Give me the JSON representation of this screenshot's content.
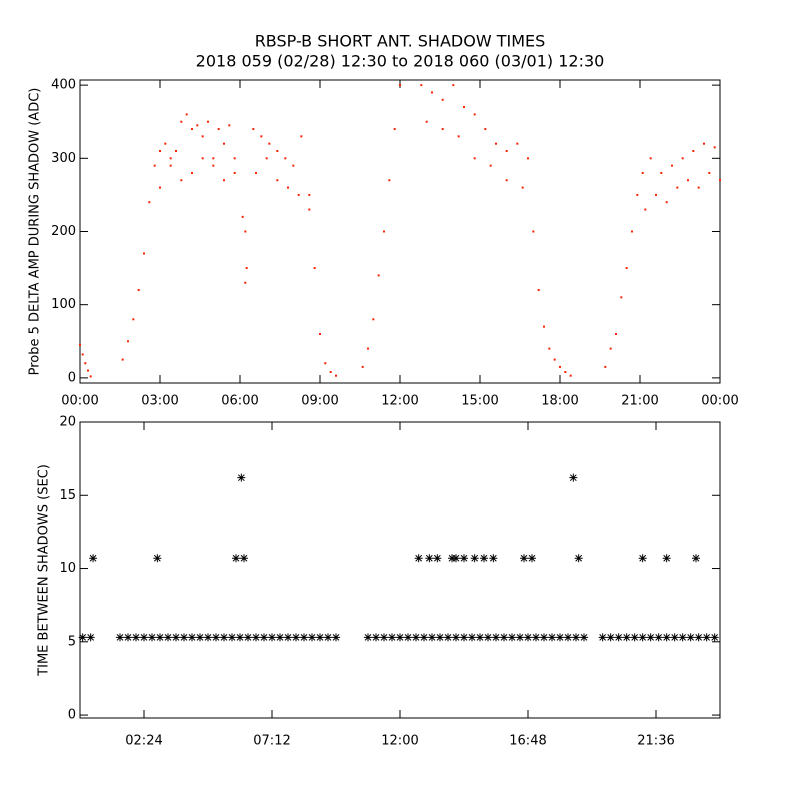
{
  "chart_data": [
    {
      "type": "scatter",
      "title": "RBSP-B SHORT ANT. SHADOW TIMES",
      "subtitle": "2018 059 (02/28) 12:30 to 2018 060 (03/01) 12:30",
      "ylabel": "Probe 5 DELTA AMP DURING SHADOW (ADC)",
      "xlim": [
        0,
        24
      ],
      "ylim": [
        -7,
        407
      ],
      "xticks": [
        {
          "value": 0,
          "label": "00:00"
        },
        {
          "value": 3,
          "label": "03:00"
        },
        {
          "value": 6,
          "label": "06:00"
        },
        {
          "value": 9,
          "label": "09:00"
        },
        {
          "value": 12,
          "label": "12:00"
        },
        {
          "value": 15,
          "label": "15:00"
        },
        {
          "value": 18,
          "label": "18:00"
        },
        {
          "value": 21,
          "label": "21:00"
        },
        {
          "value": 24,
          "label": "00:00"
        }
      ],
      "yticks": [
        0,
        100,
        200,
        300,
        400
      ],
      "series": [
        {
          "color": "#ff2000",
          "x": [
            0.0,
            0.1,
            0.2,
            0.3,
            0.4,
            1.6,
            1.8,
            2.0,
            2.2,
            2.4,
            2.6,
            2.8,
            3.0,
            3.2,
            3.4,
            3.6,
            3.8,
            4.0,
            4.2,
            4.4,
            4.6,
            4.8,
            5.0,
            5.2,
            5.4,
            5.6,
            5.8,
            3.0,
            3.4,
            3.8,
            4.2,
            4.6,
            5.0,
            5.4,
            5.8,
            6.1,
            6.2,
            6.25,
            6.2,
            6.5,
            6.8,
            7.1,
            7.4,
            7.7,
            8.0,
            8.3,
            8.6,
            8.8,
            9.0,
            9.2,
            9.4,
            9.6,
            6.6,
            7.0,
            7.4,
            7.8,
            8.2,
            8.6,
            10.6,
            10.8,
            11.0,
            11.2,
            11.4,
            11.6,
            11.8,
            12.0,
            12.8,
            13.2,
            13.6,
            14.0,
            14.4,
            14.8,
            15.2,
            15.6,
            16.0,
            16.4,
            16.8,
            17.0,
            17.2,
            17.4,
            17.6,
            17.8,
            18.0,
            18.2,
            18.4,
            13.0,
            13.6,
            14.2,
            14.8,
            15.4,
            16.0,
            16.6,
            19.7,
            19.9,
            20.1,
            20.3,
            20.5,
            20.7,
            20.9,
            21.1,
            21.4,
            21.8,
            22.2,
            22.6,
            23.0,
            23.4,
            23.8,
            21.2,
            21.6,
            22.0,
            22.4,
            22.8,
            23.2,
            23.6,
            24.0
          ],
          "values": [
            45,
            32,
            20,
            10,
            2,
            25,
            50,
            80,
            120,
            170,
            240,
            290,
            310,
            320,
            300,
            310,
            350,
            360,
            340,
            345,
            330,
            350,
            300,
            340,
            320,
            345,
            300,
            260,
            290,
            270,
            280,
            300,
            290,
            270,
            280,
            220,
            200,
            150,
            130,
            340,
            330,
            320,
            310,
            300,
            290,
            330,
            250,
            150,
            60,
            20,
            8,
            3,
            280,
            300,
            270,
            260,
            250,
            230,
            15,
            40,
            80,
            140,
            200,
            270,
            340,
            400,
            400,
            390,
            380,
            400,
            370,
            360,
            340,
            320,
            310,
            320,
            300,
            200,
            120,
            70,
            40,
            25,
            15,
            8,
            3,
            350,
            340,
            330,
            300,
            290,
            270,
            260,
            15,
            40,
            60,
            110,
            150,
            200,
            250,
            280,
            300,
            280,
            290,
            300,
            310,
            320,
            315,
            230,
            250,
            240,
            260,
            270,
            260,
            280,
            270
          ]
        }
      ]
    },
    {
      "type": "scatter",
      "ylabel": "TIME BETWEEN SHADOWS (SEC)",
      "xlim": [
        0,
        24
      ],
      "ylim": [
        -0.2,
        20
      ],
      "xticks": [
        {
          "value": 2.4,
          "label": "02:24"
        },
        {
          "value": 7.2,
          "label": "07:12"
        },
        {
          "value": 12,
          "label": "12:00"
        },
        {
          "value": 16.8,
          "label": "16:48"
        },
        {
          "value": 21.6,
          "label": "21:36"
        }
      ],
      "yticks": [
        0,
        5,
        10,
        15,
        20
      ],
      "series": [
        {
          "color": "#000000",
          "x": [
            0.1,
            0.4,
            1.5,
            1.8,
            2.1,
            2.4,
            2.7,
            3.0,
            3.3,
            3.6,
            3.9,
            4.2,
            4.5,
            4.8,
            5.1,
            5.4,
            5.7,
            6.0,
            6.3,
            6.6,
            6.9,
            7.2,
            7.5,
            7.8,
            8.1,
            8.4,
            8.7,
            9.0,
            9.3,
            9.6,
            10.8,
            11.1,
            11.4,
            11.7,
            12.0,
            12.3,
            12.6,
            12.9,
            13.2,
            13.5,
            13.8,
            14.1,
            14.4,
            14.7,
            15.0,
            15.3,
            15.6,
            15.9,
            16.2,
            16.5,
            16.8,
            17.1,
            17.4,
            17.7,
            18.0,
            18.3,
            18.6,
            18.9,
            19.6,
            19.9,
            20.2,
            20.5,
            20.8,
            21.1,
            21.4,
            21.7,
            22.0,
            22.3,
            22.6,
            22.9,
            23.2,
            23.5,
            23.8,
            0.49,
            2.9,
            5.85,
            6.15,
            12.7,
            13.1,
            13.4,
            13.95,
            14.1,
            14.4,
            14.8,
            15.15,
            15.5,
            16.65,
            16.95,
            18.7,
            21.1,
            22.0,
            23.1,
            6.05,
            18.5
          ],
          "values": [
            5.3,
            5.3,
            5.3,
            5.3,
            5.3,
            5.3,
            5.3,
            5.3,
            5.3,
            5.3,
            5.3,
            5.3,
            5.3,
            5.3,
            5.3,
            5.3,
            5.3,
            5.3,
            5.3,
            5.3,
            5.3,
            5.3,
            5.3,
            5.3,
            5.3,
            5.3,
            5.3,
            5.3,
            5.3,
            5.3,
            5.3,
            5.3,
            5.3,
            5.3,
            5.3,
            5.3,
            5.3,
            5.3,
            5.3,
            5.3,
            5.3,
            5.3,
            5.3,
            5.3,
            5.3,
            5.3,
            5.3,
            5.3,
            5.3,
            5.3,
            5.3,
            5.3,
            5.3,
            5.3,
            5.3,
            5.3,
            5.3,
            5.3,
            5.3,
            5.3,
            5.3,
            5.3,
            5.3,
            5.3,
            5.3,
            5.3,
            5.3,
            5.3,
            5.3,
            5.3,
            5.3,
            5.3,
            5.3,
            10.7,
            10.7,
            10.7,
            10.7,
            10.7,
            10.7,
            10.7,
            10.7,
            10.7,
            10.7,
            10.7,
            10.7,
            10.7,
            10.7,
            10.7,
            10.7,
            10.7,
            10.7,
            10.7,
            16.2,
            16.2
          ]
        }
      ]
    }
  ]
}
